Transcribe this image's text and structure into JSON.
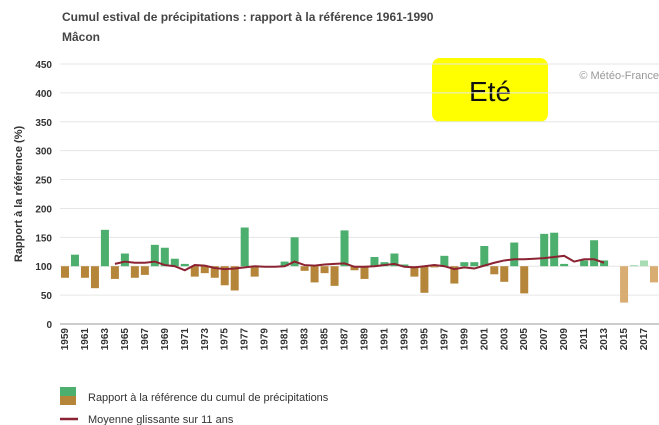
{
  "chart_data": {
    "type": "bar",
    "title": "Cumul estival de précipitations : rapport à la référence 1961-1990",
    "subtitle": "Mâcon",
    "season": "Eté",
    "credit": "© Météo-France",
    "y_label": "Rapport à la référence (%)",
    "baseline": 100,
    "ylim": [
      0,
      450
    ],
    "yticks": [
      0,
      50,
      100,
      150,
      200,
      250,
      300,
      350,
      400,
      450
    ],
    "grid": true,
    "categories": [
      "1959",
      null,
      "1961",
      null,
      "1963",
      null,
      "1965",
      null,
      "1967",
      null,
      "1969",
      null,
      "1971",
      null,
      "1973",
      null,
      "1975",
      null,
      "1977",
      null,
      "1979",
      null,
      "1981",
      null,
      "1983",
      null,
      "1985",
      null,
      "1987",
      null,
      "1989",
      null,
      "1991",
      null,
      "1993",
      null,
      "1995",
      null,
      "1997",
      null,
      "1999",
      null,
      "2001",
      null,
      "2003",
      null,
      "2005",
      null,
      "2007",
      null,
      "2009",
      null,
      "2011",
      null,
      "2013",
      null,
      "2015",
      null,
      "2017",
      null
    ],
    "series": [
      {
        "name": "Rapport à la référence du cumul de précipitations",
        "legend_colors": [
          "#4caf6e",
          "#b5853a"
        ],
        "values": [
          80,
          120,
          80,
          62,
          163,
          78,
          122,
          80,
          85,
          137,
          132,
          113,
          104,
          82,
          88,
          80,
          67,
          58,
          167,
          82,
          98,
          99,
          108,
          150,
          92,
          72,
          88,
          66,
          162,
          93,
          78,
          116,
          107,
          122,
          103,
          82,
          54,
          98,
          118,
          70,
          107,
          107,
          135,
          86,
          73,
          141,
          53,
          100,
          156,
          158,
          104,
          100,
          110,
          145,
          110,
          100,
          37,
          102,
          110,
          72
        ],
        "colors": [
          "#b5853a",
          "#4caf6e",
          "#b5853a",
          "#b5853a",
          "#4caf6e",
          "#b5853a",
          "#4caf6e",
          "#b5853a",
          "#b5853a",
          "#4caf6e",
          "#4caf6e",
          "#4caf6e",
          "#4caf6e",
          "#b5853a",
          "#b5853a",
          "#b5853a",
          "#b5853a",
          "#b5853a",
          "#4caf6e",
          "#b5853a",
          "#b5853a",
          "#b5853a",
          "#4caf6e",
          "#4caf6e",
          "#b5853a",
          "#b5853a",
          "#b5853a",
          "#b5853a",
          "#4caf6e",
          "#b5853a",
          "#b5853a",
          "#4caf6e",
          "#4caf6e",
          "#4caf6e",
          "#4caf6e",
          "#b5853a",
          "#b5853a",
          "#b5853a",
          "#4caf6e",
          "#b5853a",
          "#4caf6e",
          "#4caf6e",
          "#4caf6e",
          "#b5853a",
          "#b5853a",
          "#4caf6e",
          "#b5853a",
          "#4caf6e",
          "#4caf6e",
          "#4caf6e",
          "#4caf6e",
          "#4caf6e",
          "#4caf6e",
          "#4caf6e",
          "#4caf6e",
          "#a8dcb4",
          "#d9ad72",
          "#a8dcb4",
          "#a8dcb4",
          "#d9ad72"
        ]
      },
      {
        "name": "Moyenne glissante sur 11 ans",
        "color": "#8b2332",
        "values": [
          null,
          null,
          null,
          null,
          null,
          104,
          108,
          106,
          106,
          108,
          102,
          100,
          93,
          102,
          101,
          97,
          95,
          96,
          98,
          100,
          99,
          99,
          100,
          108,
          102,
          101,
          103,
          104,
          105,
          99,
          99,
          100,
          102,
          104,
          99,
          98,
          100,
          102,
          100,
          95,
          98,
          96,
          101,
          106,
          110,
          112,
          112,
          113,
          114,
          116,
          118,
          108,
          112,
          112,
          106,
          null,
          null,
          null,
          null,
          null
        ]
      }
    ]
  }
}
